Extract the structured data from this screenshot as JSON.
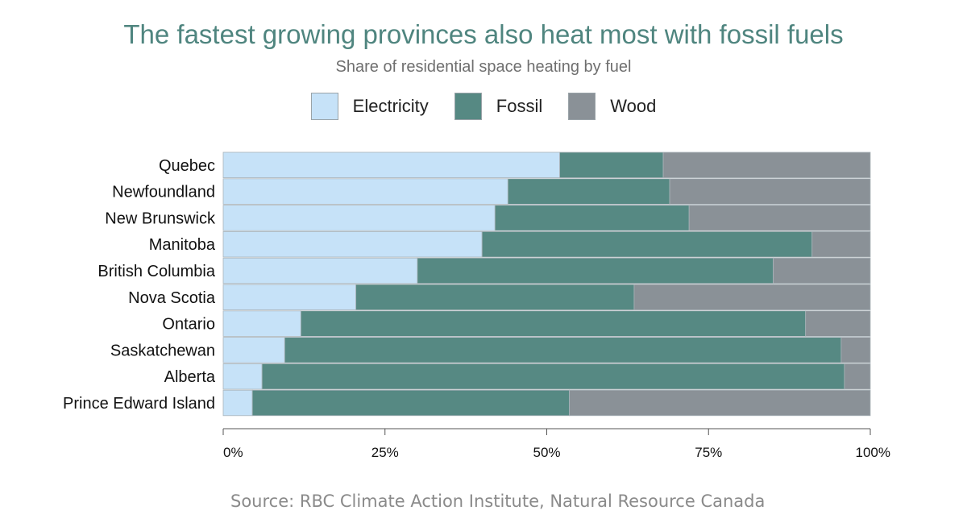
{
  "chart_data": {
    "type": "bar",
    "orientation": "horizontal",
    "stacked": true,
    "title": "The fastest growing provinces also heat most with fossil fuels",
    "subtitle": "Share of residential space heating by fuel",
    "source": "Source: RBC Climate Action Institute, Natural Resource Canada",
    "categories": [
      "Quebec",
      "Newfoundland",
      "New Brunswick",
      "Manitoba",
      "British Columbia",
      "Nova Scotia",
      "Ontario",
      "Saskatchewan",
      "Alberta",
      "Prince Edward Island"
    ],
    "series": [
      {
        "name": "Electricity",
        "color": "#c6e2f8",
        "values": [
          52,
          44,
          42,
          40,
          30,
          20.5,
          12,
          9.5,
          6,
          4.5
        ]
      },
      {
        "name": "Fossil",
        "color": "#568983",
        "values": [
          16,
          25,
          30,
          51,
          55,
          43,
          78,
          86,
          90,
          49
        ]
      },
      {
        "name": "Wood",
        "color": "#8a9197",
        "values": [
          32,
          31,
          28,
          9,
          15,
          36.5,
          10,
          4.5,
          4,
          46.5
        ]
      }
    ],
    "xlim": [
      0,
      100
    ],
    "xticks": [
      "0%",
      "25%",
      "50%",
      "75%",
      "100%"
    ],
    "legend_position": "top",
    "grid": false
  }
}
